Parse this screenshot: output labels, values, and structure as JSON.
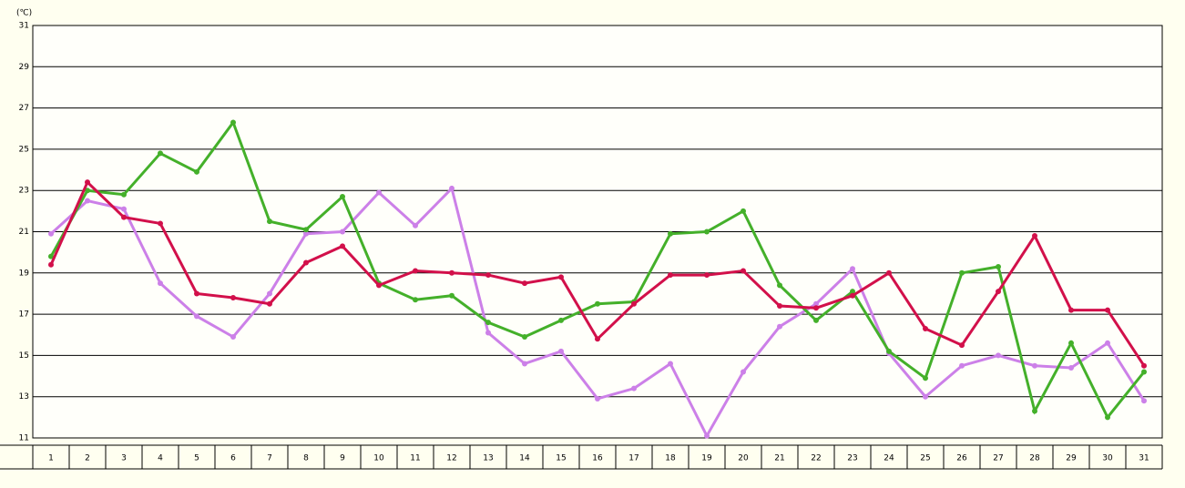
{
  "chart_data": {
    "type": "line",
    "y_unit": "(℃)",
    "categories": [
      "1",
      "2",
      "3",
      "4",
      "5",
      "6",
      "7",
      "8",
      "9",
      "10",
      "11",
      "12",
      "13",
      "14",
      "15",
      "16",
      "17",
      "18",
      "19",
      "20",
      "21",
      "22",
      "23",
      "24",
      "25",
      "26",
      "27",
      "28",
      "29",
      "30",
      "31"
    ],
    "series": [
      {
        "color": "#cc80e8",
        "values": [
          20.9,
          22.5,
          22.1,
          18.5,
          16.9,
          15.9,
          18.0,
          20.9,
          21.0,
          22.9,
          21.3,
          23.1,
          16.1,
          14.6,
          15.2,
          12.9,
          13.4,
          14.6,
          11.1,
          14.2,
          16.4,
          17.5,
          19.2,
          15.1,
          13.0,
          14.5,
          15.0,
          14.5,
          14.4,
          15.6,
          12.8
        ]
      },
      {
        "color": "#44b02a",
        "values": [
          19.8,
          23.0,
          22.8,
          24.8,
          23.9,
          26.3,
          21.5,
          21.1,
          22.7,
          18.5,
          17.7,
          17.9,
          16.6,
          15.9,
          16.7,
          17.5,
          17.6,
          20.9,
          21.0,
          22.0,
          18.4,
          16.7,
          18.1,
          15.2,
          13.9,
          19.0,
          19.3,
          12.3,
          15.6,
          12.0,
          14.2
        ]
      },
      {
        "color": "#d2104a",
        "values": [
          19.4,
          23.4,
          21.7,
          21.4,
          18.0,
          17.8,
          17.5,
          19.5,
          20.3,
          18.4,
          19.1,
          19.0,
          18.9,
          18.5,
          18.8,
          15.8,
          17.5,
          18.9,
          18.9,
          19.1,
          17.4,
          17.3,
          17.9,
          19.0,
          16.3,
          15.5,
          18.1,
          20.8,
          17.2,
          17.2,
          14.5
        ]
      }
    ],
    "ylim": [
      11,
      31
    ],
    "yticks": [
      11,
      13,
      15,
      17,
      19,
      21,
      23,
      25,
      27,
      29,
      31
    ],
    "grid": true
  }
}
